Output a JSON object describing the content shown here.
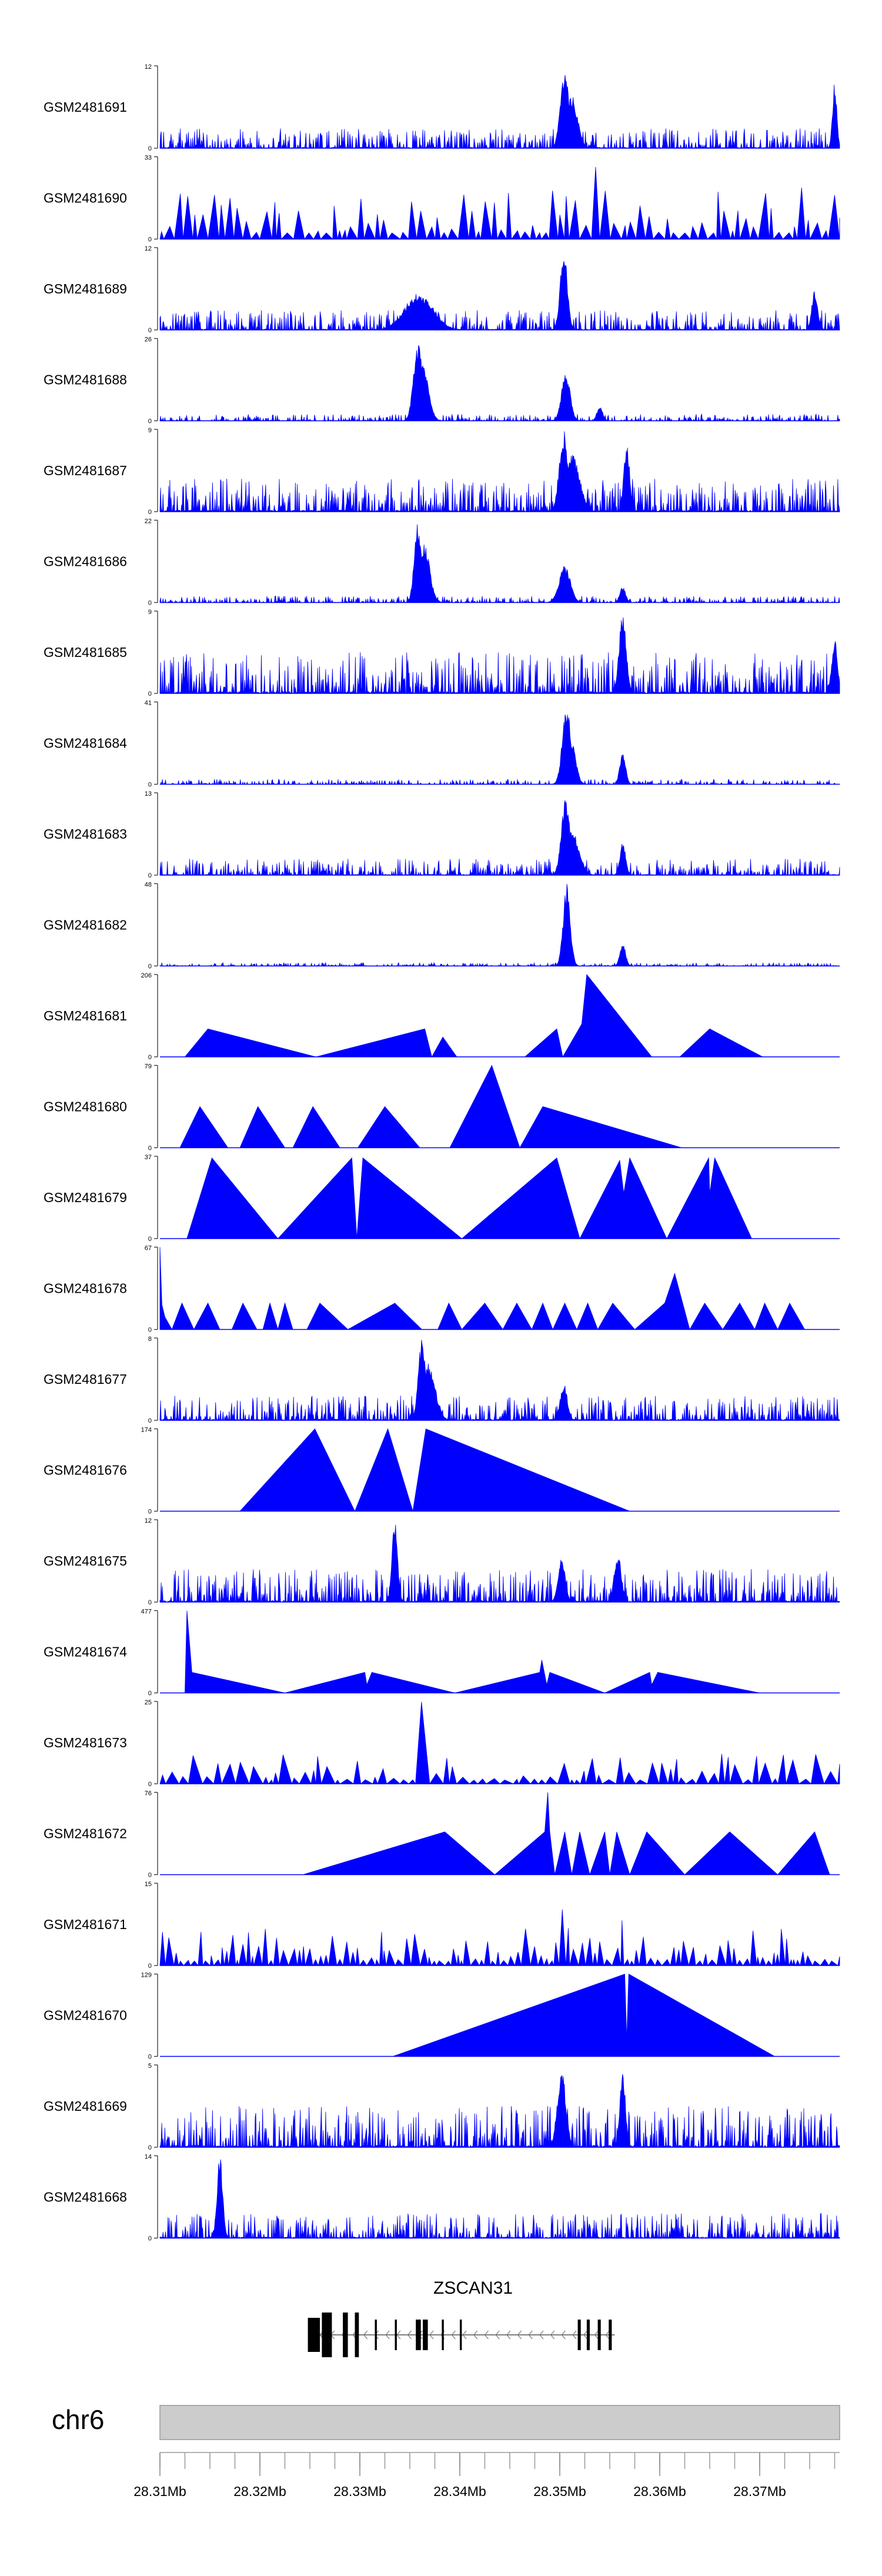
{
  "colors": {
    "signal": "#0000FF",
    "axis": "#222222",
    "ideogram_fill": "#CCCCCC",
    "ideogram_stroke": "#999999",
    "gene": "#000000",
    "background": "#FFFFFF"
  },
  "chart_data": {
    "type": "area",
    "title": "",
    "xlabel": "",
    "ylabel": "",
    "x_range_mb": [
      28.31,
      28.378
    ],
    "tracks": [
      {
        "name": "GSM2481691",
        "ymax_label": "12",
        "ymin_label": "0",
        "ymax": 12,
        "shape": "noisy",
        "seed": 1,
        "density": 130,
        "base": 0.12,
        "peaks": [
          [
            28.3505,
            1.0,
            0.0006
          ],
          [
            28.3512,
            0.65,
            0.0008
          ],
          [
            28.3775,
            0.8,
            0.0003
          ]
        ]
      },
      {
        "name": "GSM2481690",
        "ymax_label": "33",
        "ymin_label": "0",
        "ymax": 33,
        "shape": "spiky",
        "seed": 2,
        "density": 70,
        "base": 0.25,
        "peaks": [
          [
            28.3504,
            0.75,
            0.0004
          ],
          [
            28.3537,
            0.95,
            0.0004
          ],
          [
            28.3777,
            0.85,
            0.0003
          ]
        ]
      },
      {
        "name": "GSM2481689",
        "ymax_label": "12",
        "ymin_label": "0",
        "ymax": 12,
        "shape": "noisy",
        "seed": 3,
        "density": 130,
        "base": 0.12,
        "peaks": [
          [
            28.3359,
            0.45,
            0.002
          ],
          [
            28.3504,
            1.0,
            0.0005
          ],
          [
            28.3755,
            0.5,
            0.0004
          ]
        ]
      },
      {
        "name": "GSM2481688",
        "ymax_label": "26",
        "ymin_label": "0",
        "ymax": 26,
        "shape": "noisy",
        "seed": 4,
        "density": 120,
        "base": 0.04,
        "peaks": [
          [
            28.3358,
            1.0,
            0.0006
          ],
          [
            28.3363,
            0.7,
            0.0008
          ],
          [
            28.3506,
            0.6,
            0.0006
          ],
          [
            28.354,
            0.18,
            0.0004
          ]
        ]
      },
      {
        "name": "GSM2481687",
        "ymax_label": "9",
        "ymin_label": "0",
        "ymax": 9,
        "shape": "noisy",
        "seed": 5,
        "density": 140,
        "base": 0.2,
        "peaks": [
          [
            28.3504,
            1.0,
            0.0006
          ],
          [
            28.3513,
            0.7,
            0.001
          ],
          [
            28.3567,
            0.85,
            0.0004
          ]
        ]
      },
      {
        "name": "GSM2481686",
        "ymax_label": "22",
        "ymin_label": "0",
        "ymax": 22,
        "shape": "noisy",
        "seed": 6,
        "density": 120,
        "base": 0.04,
        "peaks": [
          [
            28.3358,
            1.0,
            0.0005
          ],
          [
            28.3364,
            0.75,
            0.0008
          ],
          [
            28.3505,
            0.45,
            0.0008
          ],
          [
            28.3563,
            0.2,
            0.0004
          ]
        ]
      },
      {
        "name": "GSM2481685",
        "ymax_label": "9",
        "ymin_label": "0",
        "ymax": 9,
        "shape": "noisy",
        "seed": 7,
        "density": 140,
        "base": 0.25,
        "peaks": [
          [
            28.3563,
            1.0,
            0.0005
          ],
          [
            28.3775,
            0.7,
            0.0004
          ]
        ]
      },
      {
        "name": "GSM2481684",
        "ymax_label": "41",
        "ymin_label": "0",
        "ymax": 41,
        "shape": "noisy",
        "seed": 8,
        "density": 110,
        "base": 0.03,
        "peaks": [
          [
            28.3507,
            1.0,
            0.0006
          ],
          [
            28.3512,
            0.5,
            0.0006
          ],
          [
            28.3563,
            0.42,
            0.0004
          ]
        ]
      },
      {
        "name": "GSM2481683",
        "ymax_label": "13",
        "ymin_label": "0",
        "ymax": 13,
        "shape": "noisy",
        "seed": 9,
        "density": 130,
        "base": 0.1,
        "peaks": [
          [
            28.3506,
            1.0,
            0.0006
          ],
          [
            28.3512,
            0.55,
            0.001
          ],
          [
            28.3563,
            0.4,
            0.0004
          ]
        ]
      },
      {
        "name": "GSM2481682",
        "ymax_label": "48",
        "ymin_label": "0",
        "ymax": 48,
        "shape": "noisy",
        "seed": 10,
        "density": 110,
        "base": 0.02,
        "peaks": [
          [
            28.3507,
            1.0,
            0.0005
          ],
          [
            28.3563,
            0.28,
            0.0004
          ]
        ]
      },
      {
        "name": "GSM2481681",
        "ymax_label": "206",
        "ymin_label": "0",
        "ymax": 206,
        "shape": "tri",
        "points": [
          [
            28.3125,
            0
          ],
          [
            28.3148,
            0.34
          ],
          [
            28.3256,
            0
          ],
          [
            28.3365,
            0.34
          ],
          [
            28.3372,
            0
          ],
          [
            28.3383,
            0.24
          ],
          [
            28.3397,
            0
          ],
          [
            28.3465,
            0
          ],
          [
            28.3497,
            0.34
          ],
          [
            28.3503,
            0
          ],
          [
            28.3522,
            0.4
          ],
          [
            28.3527,
            1.0
          ],
          [
            28.3592,
            0
          ],
          [
            28.362,
            0
          ],
          [
            28.365,
            0.34
          ],
          [
            28.3703,
            0
          ]
        ]
      },
      {
        "name": "GSM2481680",
        "ymax_label": "79",
        "ymin_label": "0",
        "ymax": 79,
        "shape": "tri",
        "points": [
          [
            28.312,
            0
          ],
          [
            28.314,
            0.5
          ],
          [
            28.3168,
            0
          ],
          [
            28.318,
            0
          ],
          [
            28.3198,
            0.5
          ],
          [
            28.3225,
            0
          ],
          [
            28.3233,
            0
          ],
          [
            28.3253,
            0.5
          ],
          [
            28.328,
            0
          ],
          [
            28.3298,
            0
          ],
          [
            28.3325,
            0.5
          ],
          [
            28.336,
            0
          ],
          [
            28.339,
            0
          ],
          [
            28.3432,
            1.0
          ],
          [
            28.346,
            0
          ],
          [
            28.3483,
            0.5
          ],
          [
            28.3622,
            0
          ]
        ]
      },
      {
        "name": "GSM2481679",
        "ymax_label": "37",
        "ymin_label": "0",
        "ymax": 37,
        "shape": "tri",
        "points": [
          [
            28.3127,
            0
          ],
          [
            28.3152,
            0.98
          ],
          [
            28.3218,
            0
          ],
          [
            28.3292,
            0.98
          ],
          [
            28.3297,
            0
          ],
          [
            28.3303,
            0.98
          ],
          [
            28.3402,
            0
          ],
          [
            28.3497,
            0.98
          ],
          [
            28.352,
            0
          ],
          [
            28.356,
            0.95
          ],
          [
            28.3564,
            0.55
          ],
          [
            28.357,
            0.98
          ],
          [
            28.3607,
            0
          ],
          [
            28.3649,
            0.98
          ],
          [
            28.365,
            0.55
          ],
          [
            28.3655,
            0.98
          ],
          [
            28.3692,
            0
          ]
        ]
      },
      {
        "name": "GSM2481678",
        "ymax_label": "67",
        "ymin_label": "0",
        "ymax": 67,
        "shape": "tri",
        "points": [
          [
            28.31,
            1.0
          ],
          [
            28.3102,
            0.3
          ],
          [
            28.3105,
            0.15
          ],
          [
            28.3112,
            0
          ],
          [
            28.3122,
            0.32
          ],
          [
            28.3134,
            0
          ],
          [
            28.3148,
            0.32
          ],
          [
            28.316,
            0
          ],
          [
            28.3172,
            0
          ],
          [
            28.3183,
            0.32
          ],
          [
            28.3197,
            0
          ],
          [
            28.3203,
            0
          ],
          [
            28.321,
            0.32
          ],
          [
            28.3218,
            0
          ],
          [
            28.3225,
            0.32
          ],
          [
            28.3233,
            0
          ],
          [
            28.3247,
            0
          ],
          [
            28.326,
            0.32
          ],
          [
            28.3288,
            0
          ],
          [
            28.3335,
            0.32
          ],
          [
            28.3362,
            0
          ],
          [
            28.3378,
            0
          ],
          [
            28.3389,
            0.32
          ],
          [
            28.3402,
            0
          ],
          [
            28.3425,
            0.32
          ],
          [
            28.3443,
            0
          ],
          [
            28.3457,
            0.32
          ],
          [
            28.3472,
            0
          ],
          [
            28.3483,
            0.32
          ],
          [
            28.3493,
            0
          ],
          [
            28.3505,
            0.32
          ],
          [
            28.3517,
            0
          ],
          [
            28.3528,
            0.32
          ],
          [
            28.3538,
            0
          ],
          [
            28.3553,
            0.32
          ],
          [
            28.3575,
            0
          ],
          [
            28.3605,
            0.32
          ],
          [
            28.3615,
            0.68
          ],
          [
            28.363,
            0
          ],
          [
            28.3645,
            0.32
          ],
          [
            28.3663,
            0
          ],
          [
            28.368,
            0.32
          ],
          [
            28.3695,
            0
          ],
          [
            28.3705,
            0.32
          ],
          [
            28.3718,
            0
          ],
          [
            28.373,
            0.32
          ],
          [
            28.3745,
            0
          ]
        ]
      },
      {
        "name": "GSM2481677",
        "ymax_label": "8",
        "ymin_label": "0",
        "ymax": 8,
        "shape": "noisy",
        "seed": 11,
        "density": 140,
        "base": 0.15,
        "peaks": [
          [
            28.3362,
            1.0,
            0.0005
          ],
          [
            28.3368,
            0.7,
            0.001
          ],
          [
            28.3504,
            0.45,
            0.0005
          ]
        ]
      },
      {
        "name": "GSM2481676",
        "ymax_label": "174",
        "ymin_label": "0",
        "ymax": 174,
        "shape": "tri",
        "points": [
          [
            28.318,
            0
          ],
          [
            28.3255,
            1.0
          ],
          [
            28.3295,
            0
          ],
          [
            28.3328,
            1.0
          ],
          [
            28.3353,
            0
          ],
          [
            28.3366,
            1.0
          ],
          [
            28.357,
            0
          ]
        ]
      },
      {
        "name": "GSM2481675",
        "ymax_label": "12",
        "ymin_label": "0",
        "ymax": 12,
        "shape": "noisy",
        "seed": 12,
        "density": 140,
        "base": 0.2,
        "peaks": [
          [
            28.3335,
            1.0,
            0.0004
          ],
          [
            28.3502,
            0.55,
            0.0005
          ],
          [
            28.3558,
            0.6,
            0.0005
          ]
        ]
      },
      {
        "name": "GSM2481674",
        "ymax_label": "477",
        "ymin_label": "0",
        "ymax": 477,
        "shape": "tri",
        "points": [
          [
            28.3125,
            0
          ],
          [
            28.3127,
            1.0
          ],
          [
            28.3132,
            0.25
          ],
          [
            28.3225,
            0
          ],
          [
            28.3305,
            0.25
          ],
          [
            28.3307,
            0.1
          ],
          [
            28.3312,
            0.25
          ],
          [
            28.3395,
            0
          ],
          [
            28.348,
            0.25
          ],
          [
            28.3482,
            0.4
          ],
          [
            28.3487,
            0.1
          ],
          [
            28.349,
            0.25
          ],
          [
            28.3545,
            0
          ],
          [
            28.359,
            0.25
          ],
          [
            28.3592,
            0.1
          ],
          [
            28.3598,
            0.25
          ],
          [
            28.37,
            0
          ]
        ]
      },
      {
        "name": "GSM2481673",
        "ymax_label": "25",
        "ymin_label": "0",
        "ymax": 25,
        "shape": "spiky",
        "seed": 13,
        "density": 60,
        "base": 0.15,
        "peaks": [
          [
            28.3362,
            1.0,
            0.0005
          ],
          [
            28.3366,
            0.7,
            0.0008
          ]
        ]
      },
      {
        "name": "GSM2481672",
        "ymax_label": "76",
        "ymin_label": "0",
        "ymax": 76,
        "shape": "tri",
        "points": [
          [
            28.3243,
            0
          ],
          [
            28.3385,
            0.52
          ],
          [
            28.3435,
            0
          ],
          [
            28.3485,
            0.52
          ],
          [
            28.3488,
            1.0
          ],
          [
            28.349,
            0.52
          ],
          [
            28.3495,
            0
          ],
          [
            28.3505,
            0.52
          ],
          [
            28.3512,
            0
          ],
          [
            28.352,
            0.52
          ],
          [
            28.353,
            0
          ],
          [
            28.3545,
            0.52
          ],
          [
            28.355,
            0
          ],
          [
            28.3557,
            0.52
          ],
          [
            28.357,
            0
          ],
          [
            28.3587,
            0.52
          ],
          [
            28.3625,
            0
          ],
          [
            28.367,
            0.52
          ],
          [
            28.3718,
            0
          ],
          [
            28.3755,
            0.52
          ],
          [
            28.377,
            0
          ]
        ]
      },
      {
        "name": "GSM2481671",
        "ymax_label": "15",
        "ymin_label": "0",
        "ymax": 15,
        "shape": "spiky",
        "seed": 14,
        "density": 95,
        "base": 0.18,
        "peaks": [
          [
            28.336,
            0.8,
            0.0004
          ],
          [
            28.3505,
            1.0,
            0.0004
          ],
          [
            28.3562,
            0.55,
            0.0004
          ]
        ]
      },
      {
        "name": "GSM2481670",
        "ymax_label": "129",
        "ymin_label": "0",
        "ymax": 129,
        "shape": "tri",
        "points": [
          [
            28.3333,
            0
          ],
          [
            28.3565,
            1.0
          ],
          [
            28.3567,
            0.2
          ],
          [
            28.3569,
            1.0
          ],
          [
            28.3715,
            0
          ]
        ]
      },
      {
        "name": "GSM2481669",
        "ymax_label": "5",
        "ymin_label": "0",
        "ymax": 5,
        "shape": "noisy",
        "seed": 15,
        "density": 140,
        "base": 0.25,
        "peaks": [
          [
            28.3502,
            0.95,
            0.0006
          ],
          [
            28.3563,
            0.9,
            0.0004
          ]
        ]
      },
      {
        "name": "GSM2481668",
        "ymax_label": "14",
        "ymin_label": "0",
        "ymax": 14,
        "shape": "noisy",
        "seed": 16,
        "density": 140,
        "base": 0.15,
        "peaks": [
          [
            28.316,
            1.0,
            0.0004
          ]
        ]
      }
    ],
    "gene": {
      "name": "ZSCAN31",
      "start_mb": 28.3248,
      "end_mb": 28.3555,
      "strand": "-",
      "exons_mb": [
        [
          28.3248,
          28.326
        ],
        [
          28.3262,
          28.3272
        ],
        [
          28.3283,
          28.3288
        ],
        [
          28.3295,
          28.3299
        ],
        [
          28.3315,
          28.3317
        ],
        [
          28.3335,
          28.3337
        ],
        [
          28.3356,
          28.3361
        ],
        [
          28.3363,
          28.3368
        ],
        [
          28.3382,
          28.3384
        ],
        [
          28.34,
          28.3402
        ],
        [
          28.3518,
          28.3521
        ],
        [
          28.3527,
          28.353
        ],
        [
          28.3538,
          28.3541
        ],
        [
          28.3549,
          28.3552
        ]
      ]
    },
    "axis": {
      "chromosome": "chr6",
      "tick_labels": [
        {
          "mb": 28.31,
          "label": "28.31Mb"
        },
        {
          "mb": 28.32,
          "label": "28.32Mb"
        },
        {
          "mb": 28.33,
          "label": "28.33Mb"
        },
        {
          "mb": 28.34,
          "label": "28.34Mb"
        },
        {
          "mb": 28.35,
          "label": "28.35Mb"
        },
        {
          "mb": 28.36,
          "label": "28.36Mb"
        },
        {
          "mb": 28.37,
          "label": "28.37Mb"
        }
      ],
      "minor_tick_step_mb": 0.0025
    }
  }
}
